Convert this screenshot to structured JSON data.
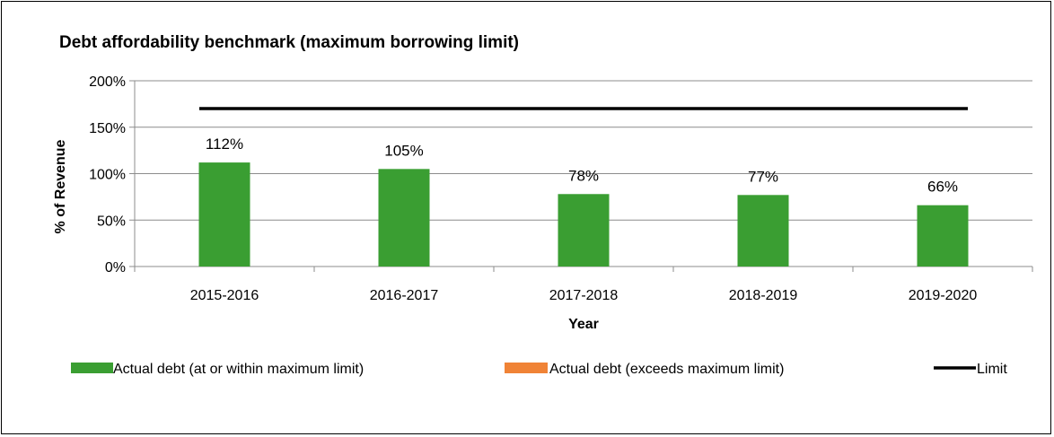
{
  "chart_data": {
    "type": "bar",
    "title": "Debt affordability benchmark (maximum borrowing limit)",
    "xlabel": "Year",
    "ylabel": "% of Revenue",
    "categories": [
      "2015-2016",
      "2016-2017",
      "2017-2018",
      "2018-2019",
      "2019-2020"
    ],
    "series": [
      {
        "name": "Actual debt (at or within maximum limit)",
        "color": "#3A9E32",
        "values": [
          112,
          105,
          78,
          77,
          66
        ],
        "data_labels": [
          "112%",
          "105%",
          "78%",
          "77%",
          "66%"
        ]
      },
      {
        "name": "Actual debt (exceeds maximum limit)",
        "color": "#F08336",
        "values": [
          0,
          0,
          0,
          0,
          0
        ]
      },
      {
        "name": "Limit",
        "type": "line",
        "color": "#000000",
        "values": [
          170,
          170,
          170,
          170,
          170
        ]
      }
    ],
    "ylim": [
      0,
      200
    ],
    "yticks": [
      0,
      50,
      100,
      150,
      200
    ],
    "ytick_labels": [
      "0%",
      "50%",
      "100%",
      "150%",
      "200%"
    ],
    "grid": true,
    "legend_position": "bottom"
  }
}
